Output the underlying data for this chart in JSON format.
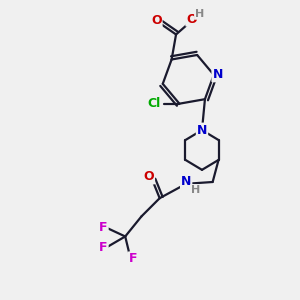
{
  "bg_color": "#f0f0f0",
  "atom_colors": {
    "C": "#000000",
    "N": "#0000cc",
    "O": "#cc0000",
    "Cl": "#00aa00",
    "F": "#cc00cc",
    "H": "#888888"
  },
  "bond_color": "#1a1a2e",
  "bond_width": 1.6,
  "font_size_atom": 9
}
